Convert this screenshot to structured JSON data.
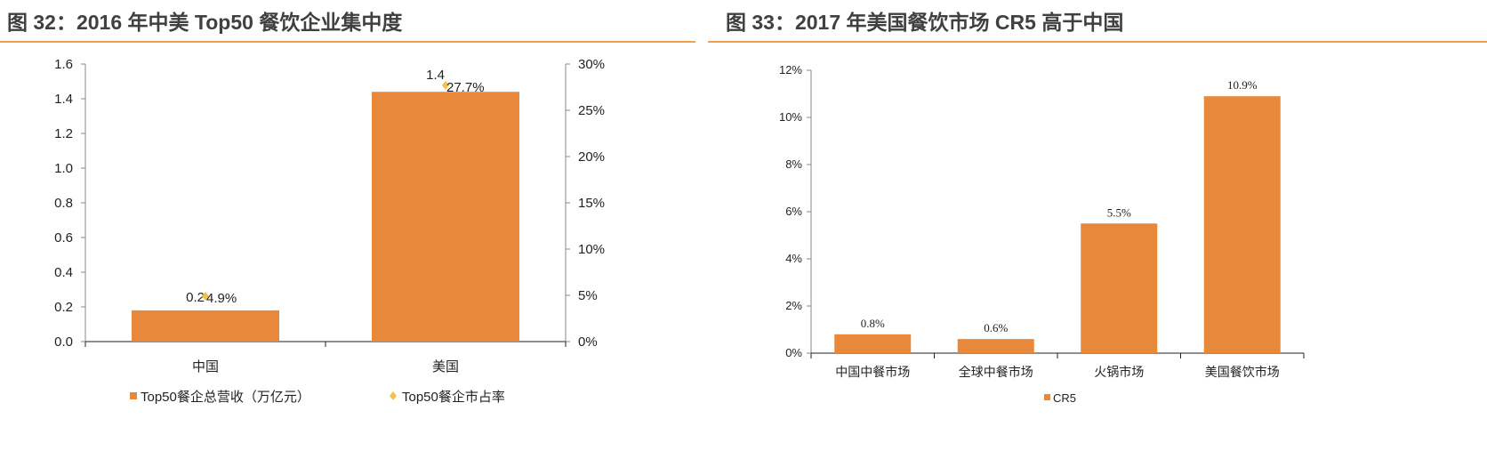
{
  "titles": [
    "图 32：2016 年中美 Top50 餐饮企业集中度",
    "图 33：2017 年美国餐饮市场 CR5 高于中国"
  ],
  "chart_data": [
    {
      "type": "bar",
      "title": "图 32：2016 年中美 Top50 餐饮企业集中度",
      "categories": [
        "中国",
        "美国"
      ],
      "series": [
        {
          "name": "Top50餐企总营收（万亿元）",
          "type": "bar",
          "axis": "left",
          "values": [
            0.18,
            1.44
          ],
          "labels": [
            "0.2",
            "1.4"
          ]
        },
        {
          "name": "Top50餐企市占率",
          "type": "scatter",
          "axis": "right",
          "values": [
            4.9,
            27.7
          ],
          "labels": [
            "4.9%",
            "27.7%"
          ]
        }
      ],
      "ylim": [
        0,
        1.6
      ],
      "yticks": [
        "0.0",
        "0.2",
        "0.4",
        "0.6",
        "0.8",
        "1.0",
        "1.2",
        "1.4",
        "1.6"
      ],
      "y2lim": [
        0,
        30
      ],
      "y2ticks": [
        "0%",
        "5%",
        "10%",
        "15%",
        "20%",
        "25%",
        "30%"
      ],
      "legend": "bottom"
    },
    {
      "type": "bar",
      "title": "图 33：2017 年美国餐饮市场 CR5 高于中国",
      "categories": [
        "中国中餐市场",
        "全球中餐市场",
        "火锅市场",
        "美国餐饮市场"
      ],
      "series": [
        {
          "name": "CR5",
          "values": [
            0.8,
            0.6,
            5.5,
            10.9
          ],
          "labels": [
            "0.8%",
            "0.6%",
            "5.5%",
            "10.9%"
          ]
        }
      ],
      "ylim": [
        0,
        12
      ],
      "yticks": [
        "0%",
        "2%",
        "4%",
        "6%",
        "8%",
        "10%",
        "12%"
      ],
      "legend": "bottom"
    }
  ],
  "colors": {
    "bar": "#e8883a",
    "marker": "#f5c04a",
    "rule": "#f0a050"
  }
}
